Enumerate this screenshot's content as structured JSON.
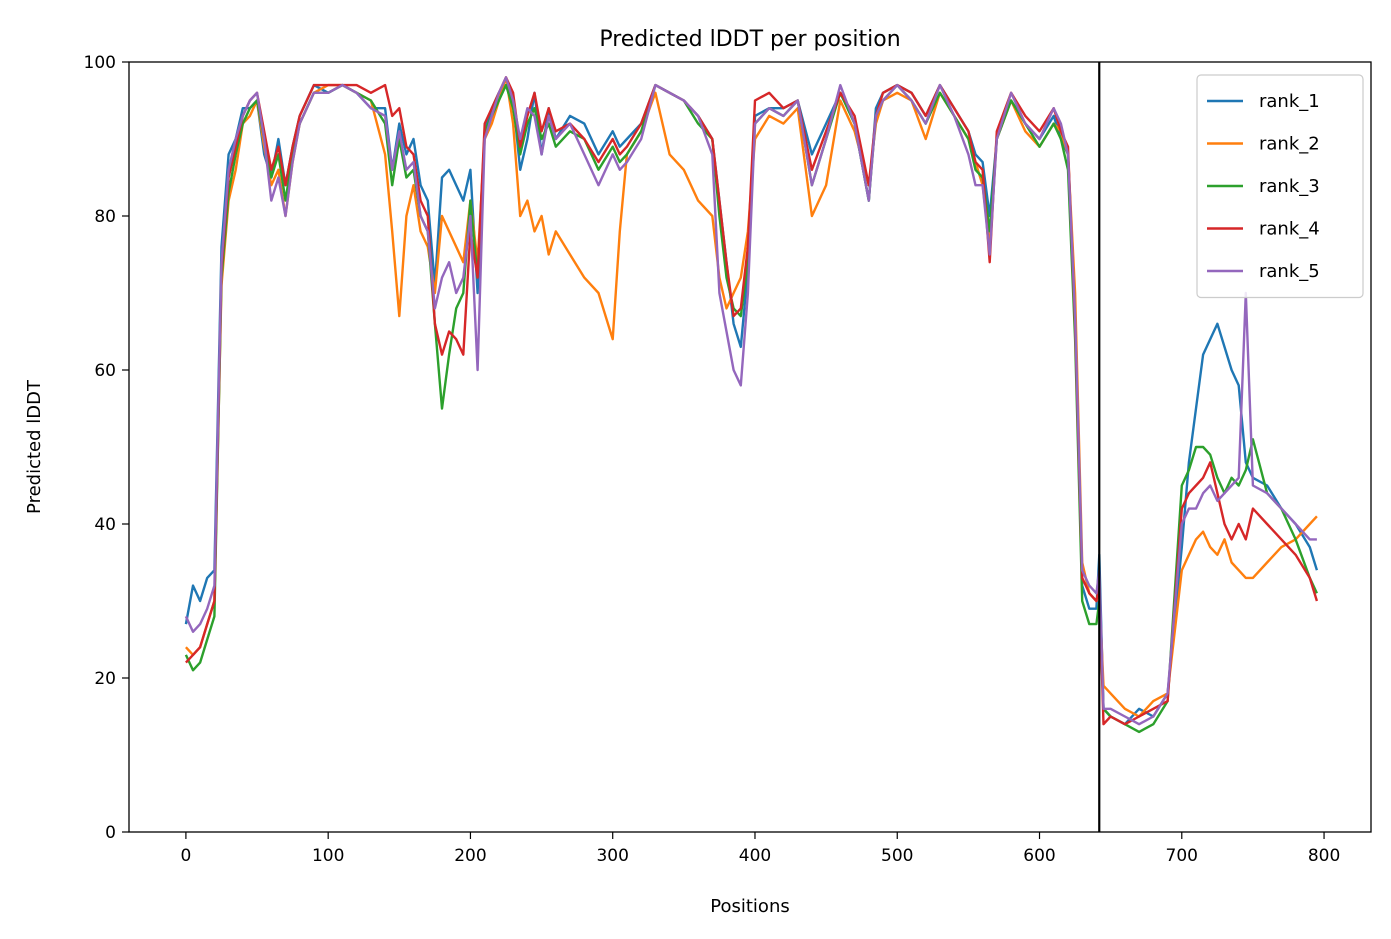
{
  "chart_data": {
    "type": "line",
    "title": "Predicted lDDT per position",
    "xlabel": "Positions",
    "ylabel": "Predicted lDDT",
    "xlim": [
      -40,
      833
    ],
    "ylim": [
      0,
      100
    ],
    "xticks": [
      0,
      100,
      200,
      300,
      400,
      500,
      600,
      700,
      800
    ],
    "yticks": [
      0,
      20,
      40,
      60,
      80,
      100
    ],
    "xtick_labels": [
      "0",
      "100",
      "200",
      "300",
      "400",
      "500",
      "600",
      "700",
      "800"
    ],
    "ytick_labels": [
      "0",
      "20",
      "40",
      "60",
      "80",
      "100"
    ],
    "grid": false,
    "legend_position": "top-right",
    "vertical_line": {
      "x": 642,
      "color": "#000000"
    },
    "series": [
      {
        "name": "rank_1",
        "color": "#1f77b4",
        "x": [
          0,
          5,
          10,
          15,
          20,
          25,
          30,
          35,
          40,
          45,
          50,
          55,
          60,
          65,
          70,
          75,
          80,
          90,
          100,
          110,
          120,
          130,
          140,
          145,
          150,
          155,
          160,
          165,
          170,
          175,
          180,
          185,
          190,
          195,
          200,
          205,
          210,
          215,
          220,
          225,
          230,
          235,
          240,
          245,
          250,
          255,
          260,
          270,
          280,
          290,
          300,
          305,
          310,
          320,
          330,
          340,
          350,
          360,
          370,
          375,
          380,
          385,
          390,
          395,
          400,
          410,
          420,
          430,
          440,
          450,
          460,
          470,
          480,
          485,
          490,
          500,
          510,
          520,
          530,
          540,
          550,
          555,
          560,
          565,
          570,
          580,
          590,
          600,
          610,
          615,
          620,
          625,
          630,
          635,
          640,
          642,
          645,
          650,
          660,
          670,
          680,
          690,
          700,
          705,
          710,
          715,
          720,
          725,
          730,
          735,
          740,
          745,
          750,
          760,
          770,
          780,
          790,
          795
        ],
        "y": [
          27,
          32,
          30,
          33,
          34,
          76,
          88,
          90,
          94,
          94,
          95,
          88,
          85,
          90,
          84,
          89,
          93,
          97,
          96,
          97,
          96,
          94,
          94,
          86,
          92,
          88,
          90,
          84,
          82,
          71,
          85,
          86,
          84,
          82,
          86,
          70,
          91,
          94,
          96,
          97,
          95,
          86,
          90,
          96,
          88,
          94,
          90,
          93,
          92,
          88,
          91,
          89,
          90,
          92,
          97,
          96,
          95,
          93,
          90,
          82,
          74,
          66,
          63,
          73,
          93,
          94,
          94,
          95,
          88,
          92,
          96,
          92,
          82,
          94,
          96,
          97,
          96,
          93,
          97,
          94,
          91,
          88,
          87,
          80,
          90,
          95,
          92,
          90,
          93,
          90,
          88,
          68,
          32,
          29,
          29,
          36,
          16,
          15,
          14,
          16,
          15,
          18,
          37,
          48,
          55,
          62,
          64,
          66,
          63,
          60,
          58,
          48,
          46,
          45,
          42,
          40,
          37,
          34
        ]
      },
      {
        "name": "rank_2",
        "color": "#ff7f0e",
        "x": [
          0,
          5,
          10,
          15,
          20,
          25,
          30,
          35,
          40,
          45,
          50,
          55,
          60,
          65,
          70,
          75,
          80,
          90,
          100,
          110,
          120,
          130,
          140,
          145,
          150,
          155,
          160,
          165,
          170,
          175,
          180,
          185,
          190,
          195,
          200,
          205,
          210,
          215,
          220,
          225,
          230,
          235,
          240,
          245,
          250,
          255,
          260,
          270,
          280,
          290,
          300,
          305,
          310,
          320,
          330,
          340,
          350,
          360,
          370,
          375,
          380,
          385,
          390,
          395,
          400,
          410,
          420,
          430,
          440,
          450,
          460,
          470,
          480,
          485,
          490,
          500,
          510,
          520,
          530,
          540,
          550,
          555,
          560,
          565,
          570,
          580,
          590,
          600,
          610,
          615,
          620,
          625,
          630,
          635,
          640,
          642,
          645,
          650,
          660,
          670,
          680,
          690,
          700,
          705,
          710,
          715,
          720,
          725,
          730,
          735,
          740,
          745,
          750,
          760,
          770,
          780,
          790,
          795
        ],
        "y": [
          24,
          23,
          24,
          27,
          30,
          71,
          82,
          86,
          92,
          93,
          95,
          89,
          84,
          86,
          80,
          87,
          92,
          96,
          97,
          97,
          96,
          95,
          88,
          78,
          67,
          80,
          84,
          78,
          76,
          70,
          80,
          78,
          76,
          74,
          82,
          74,
          90,
          92,
          95,
          98,
          92,
          80,
          82,
          78,
          80,
          75,
          78,
          75,
          72,
          70,
          64,
          78,
          88,
          91,
          96,
          88,
          86,
          82,
          80,
          72,
          68,
          70,
          72,
          78,
          90,
          93,
          92,
          94,
          80,
          84,
          95,
          91,
          84,
          92,
          95,
          96,
          95,
          90,
          96,
          93,
          90,
          87,
          84,
          76,
          90,
          95,
          91,
          89,
          92,
          91,
          88,
          70,
          35,
          31,
          30,
          31,
          19,
          18,
          16,
          15,
          17,
          18,
          34,
          36,
          38,
          39,
          37,
          36,
          38,
          35,
          34,
          33,
          33,
          35,
          37,
          38,
          40,
          41
        ]
      },
      {
        "name": "rank_3",
        "color": "#2ca02c",
        "x": [
          0,
          5,
          10,
          15,
          20,
          25,
          30,
          35,
          40,
          45,
          50,
          55,
          60,
          65,
          70,
          75,
          80,
          90,
          100,
          110,
          120,
          130,
          140,
          145,
          150,
          155,
          160,
          165,
          170,
          175,
          180,
          185,
          190,
          195,
          200,
          205,
          210,
          215,
          220,
          225,
          230,
          235,
          240,
          245,
          250,
          255,
          260,
          270,
          280,
          290,
          300,
          305,
          310,
          320,
          330,
          340,
          350,
          360,
          370,
          375,
          380,
          385,
          390,
          395,
          400,
          410,
          420,
          430,
          440,
          450,
          460,
          470,
          480,
          485,
          490,
          500,
          510,
          520,
          530,
          540,
          550,
          555,
          560,
          565,
          570,
          580,
          590,
          600,
          610,
          615,
          620,
          625,
          630,
          635,
          640,
          642,
          645,
          650,
          660,
          670,
          680,
          690,
          700,
          705,
          710,
          715,
          720,
          725,
          730,
          735,
          740,
          745,
          750,
          760,
          770,
          780,
          790,
          795
        ],
        "y": [
          23,
          21,
          22,
          25,
          28,
          72,
          83,
          88,
          92,
          94,
          95,
          90,
          85,
          88,
          82,
          88,
          92,
          96,
          96,
          97,
          96,
          95,
          92,
          84,
          90,
          85,
          86,
          80,
          78,
          66,
          55,
          62,
          68,
          70,
          82,
          72,
          91,
          93,
          95,
          97,
          94,
          88,
          92,
          94,
          90,
          92,
          89,
          91,
          90,
          86,
          89,
          87,
          88,
          91,
          97,
          96,
          95,
          92,
          90,
          80,
          72,
          68,
          67,
          74,
          92,
          94,
          93,
          95,
          84,
          90,
          96,
          92,
          82,
          93,
          95,
          97,
          95,
          92,
          96,
          93,
          90,
          86,
          85,
          78,
          90,
          95,
          92,
          89,
          92,
          90,
          86,
          64,
          30,
          27,
          27,
          30,
          16,
          15,
          14,
          13,
          14,
          17,
          45,
          47,
          50,
          50,
          49,
          46,
          44,
          46,
          45,
          47,
          51,
          44,
          42,
          38,
          33,
          31
        ]
      },
      {
        "name": "rank_4",
        "color": "#d62728",
        "x": [
          0,
          5,
          10,
          15,
          20,
          25,
          30,
          35,
          40,
          45,
          50,
          55,
          60,
          65,
          70,
          75,
          80,
          90,
          100,
          110,
          120,
          130,
          140,
          145,
          150,
          155,
          160,
          165,
          170,
          175,
          180,
          185,
          190,
          195,
          200,
          205,
          210,
          215,
          220,
          225,
          230,
          235,
          240,
          245,
          250,
          255,
          260,
          270,
          280,
          290,
          300,
          305,
          310,
          320,
          330,
          340,
          350,
          360,
          370,
          375,
          380,
          385,
          390,
          395,
          400,
          410,
          420,
          430,
          440,
          450,
          460,
          470,
          480,
          485,
          490,
          500,
          510,
          520,
          530,
          540,
          550,
          555,
          560,
          565,
          570,
          580,
          590,
          600,
          610,
          615,
          620,
          625,
          630,
          635,
          640,
          642,
          645,
          650,
          660,
          670,
          680,
          690,
          700,
          705,
          710,
          715,
          720,
          725,
          730,
          735,
          740,
          745,
          750,
          760,
          770,
          780,
          790,
          795
        ],
        "y": [
          22,
          23,
          24,
          27,
          30,
          73,
          85,
          89,
          93,
          95,
          96,
          91,
          86,
          89,
          84,
          89,
          93,
          97,
          97,
          97,
          97,
          96,
          97,
          93,
          94,
          89,
          88,
          82,
          80,
          66,
          62,
          65,
          64,
          62,
          78,
          72,
          92,
          94,
          96,
          98,
          96,
          89,
          93,
          96,
          91,
          94,
          91,
          92,
          90,
          87,
          90,
          88,
          89,
          92,
          97,
          96,
          95,
          93,
          90,
          82,
          74,
          67,
          68,
          76,
          95,
          96,
          94,
          95,
          86,
          91,
          96,
          93,
          84,
          93,
          96,
          97,
          96,
          93,
          97,
          94,
          91,
          87,
          86,
          74,
          91,
          96,
          93,
          91,
          94,
          91,
          89,
          66,
          33,
          31,
          30,
          32,
          14,
          15,
          14,
          15,
          16,
          17,
          42,
          44,
          45,
          46,
          48,
          44,
          40,
          38,
          40,
          38,
          42,
          40,
          38,
          36,
          33,
          30
        ]
      },
      {
        "name": "rank_5",
        "color": "#9467bd",
        "x": [
          0,
          5,
          10,
          15,
          20,
          25,
          30,
          35,
          40,
          45,
          50,
          55,
          60,
          65,
          70,
          75,
          80,
          90,
          100,
          110,
          120,
          130,
          140,
          145,
          150,
          155,
          160,
          165,
          170,
          175,
          180,
          185,
          190,
          195,
          200,
          205,
          210,
          215,
          220,
          225,
          230,
          235,
          240,
          245,
          250,
          255,
          260,
          270,
          280,
          290,
          300,
          305,
          310,
          320,
          330,
          340,
          350,
          360,
          370,
          375,
          380,
          385,
          390,
          395,
          400,
          410,
          420,
          430,
          440,
          450,
          460,
          470,
          480,
          485,
          490,
          500,
          510,
          520,
          530,
          540,
          550,
          555,
          560,
          565,
          570,
          580,
          590,
          600,
          610,
          615,
          620,
          625,
          630,
          635,
          640,
          642,
          645,
          650,
          660,
          670,
          680,
          690,
          700,
          705,
          710,
          715,
          720,
          725,
          730,
          735,
          740,
          745,
          750,
          760,
          770,
          780,
          790,
          795
        ],
        "y": [
          28,
          26,
          27,
          29,
          32,
          74,
          86,
          90,
          93,
          95,
          96,
          90,
          82,
          85,
          80,
          87,
          92,
          96,
          96,
          97,
          96,
          94,
          93,
          86,
          91,
          86,
          87,
          80,
          78,
          68,
          72,
          74,
          70,
          72,
          80,
          60,
          90,
          93,
          96,
          98,
          95,
          90,
          94,
          93,
          88,
          93,
          90,
          92,
          88,
          84,
          88,
          86,
          87,
          90,
          97,
          96,
          95,
          93,
          88,
          70,
          65,
          60,
          58,
          70,
          92,
          94,
          93,
          95,
          84,
          90,
          97,
          92,
          82,
          93,
          95,
          97,
          95,
          92,
          97,
          93,
          88,
          84,
          84,
          75,
          90,
          96,
          92,
          90,
          94,
          92,
          88,
          67,
          34,
          32,
          31,
          34,
          16,
          16,
          15,
          14,
          15,
          18,
          40,
          42,
          42,
          44,
          45,
          43,
          44,
          45,
          46,
          70,
          45,
          44,
          42,
          40,
          38,
          38
        ]
      }
    ]
  }
}
